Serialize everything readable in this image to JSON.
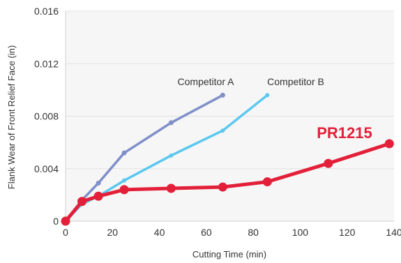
{
  "chart_data": {
    "type": "line",
    "title": "",
    "xlabel": "Cutting Time (min)",
    "ylabel": "Flank Wear of Front Relief Face (in)",
    "xlim": [
      0,
      140
    ],
    "ylim": [
      0,
      0.016
    ],
    "x_ticks": [
      "0",
      "20",
      "40",
      "60",
      "80",
      "100",
      "120",
      "140"
    ],
    "y_ticks": [
      "0",
      "0.004",
      "0.008",
      "0.012",
      "0.016"
    ],
    "grid": "horizontal",
    "series": [
      {
        "name": "Competitor A",
        "color": "#7f8fc9",
        "points": [
          [
            0,
            0
          ],
          [
            7,
            0.0016
          ],
          [
            14,
            0.0029
          ],
          [
            25,
            0.0052
          ],
          [
            45,
            0.0075
          ],
          [
            67,
            0.0096
          ]
        ]
      },
      {
        "name": "Competitor B",
        "color": "#5bc8ef",
        "points": [
          [
            0,
            0
          ],
          [
            7,
            0.0013
          ],
          [
            14,
            0.0019
          ],
          [
            25,
            0.0031
          ],
          [
            45,
            0.005
          ],
          [
            67,
            0.0069
          ],
          [
            86,
            0.0096
          ]
        ]
      },
      {
        "name": "PR1215",
        "color": "#e3203a",
        "points": [
          [
            0,
            0
          ],
          [
            7,
            0.0015
          ],
          [
            14,
            0.0019
          ],
          [
            25,
            0.0024
          ],
          [
            45,
            0.0025
          ],
          [
            67,
            0.0026
          ],
          [
            86,
            0.003
          ],
          [
            112,
            0.0044
          ],
          [
            138,
            0.0059
          ]
        ]
      }
    ]
  }
}
